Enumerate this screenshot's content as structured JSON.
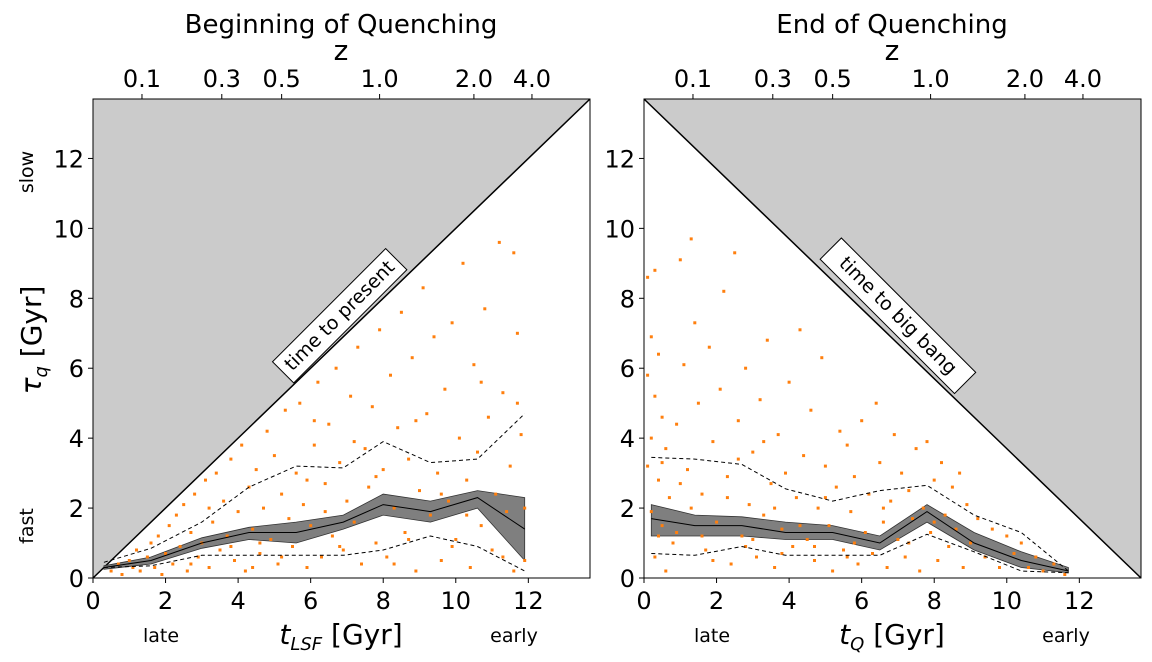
{
  "chart_data": [
    {
      "type": "scatter",
      "title": "Beginning of Quenching",
      "top_axis_label": "z",
      "top_ticks": [
        {
          "label": "0.1",
          "t": 1.35
        },
        {
          "label": "0.3",
          "t": 3.55
        },
        {
          "label": "0.5",
          "t": 5.2
        },
        {
          "label": "1.0",
          "t": 7.9
        },
        {
          "label": "2.0",
          "t": 10.5
        },
        {
          "label": "4.0",
          "t": 12.1
        }
      ],
      "xlabel_parts": [
        "t",
        "LSF",
        " [Gyr]"
      ],
      "ylabel_parts": [
        "τ",
        "q",
        " [Gyr]"
      ],
      "xticks": [
        0,
        2,
        4,
        6,
        8,
        10,
        12
      ],
      "yticks": [
        0,
        2,
        4,
        6,
        8,
        10,
        12
      ],
      "xlim": [
        0,
        13.7
      ],
      "ylim": [
        0,
        13.7
      ],
      "x_left_label": "late",
      "x_right_label": "early",
      "y_bottom_label": "fast",
      "y_top_label": "slow",
      "forbidden_region": "above_diagonal",
      "annotation": "time to present",
      "median": {
        "x": [
          0.3,
          1.6,
          3.0,
          4.3,
          5.6,
          6.9,
          8.0,
          9.3,
          10.6,
          11.9
        ],
        "y": [
          0.3,
          0.5,
          1.0,
          1.3,
          1.3,
          1.6,
          2.1,
          1.9,
          2.3,
          1.4
        ]
      },
      "band": {
        "x": [
          0.3,
          1.6,
          3.0,
          4.3,
          5.6,
          6.9,
          8.0,
          9.3,
          10.6,
          11.9
        ],
        "lo": [
          0.25,
          0.4,
          0.85,
          1.1,
          1.0,
          1.4,
          1.8,
          1.6,
          2.0,
          0.5
        ],
        "hi": [
          0.35,
          0.6,
          1.15,
          1.45,
          1.6,
          1.8,
          2.4,
          2.2,
          2.5,
          2.3
        ]
      },
      "upper_dashed": {
        "x": [
          0.3,
          1.6,
          3.0,
          4.3,
          5.6,
          6.9,
          8.0,
          9.3,
          10.6,
          11.9
        ],
        "y": [
          0.45,
          0.85,
          1.6,
          2.6,
          3.2,
          3.15,
          3.9,
          3.3,
          3.4,
          4.7
        ]
      },
      "lower_dashed": {
        "x": [
          0.3,
          1.6,
          3.0,
          4.3,
          5.6,
          6.9,
          8.0,
          9.3,
          10.6,
          11.9
        ],
        "y": [
          0.3,
          0.35,
          0.65,
          0.65,
          0.65,
          0.65,
          0.8,
          1.2,
          0.9,
          0.2
        ]
      },
      "points": [
        [
          0.5,
          0.2
        ],
        [
          0.7,
          0.4
        ],
        [
          0.8,
          0.1
        ],
        [
          1.0,
          0.5
        ],
        [
          1.1,
          0.3
        ],
        [
          1.2,
          0.8
        ],
        [
          1.3,
          0.2
        ],
        [
          1.5,
          0.6
        ],
        [
          1.6,
          1.0
        ],
        [
          1.7,
          0.3
        ],
        [
          1.8,
          1.2
        ],
        [
          1.9,
          0.1
        ],
        [
          2.0,
          0.7
        ],
        [
          2.1,
          1.5
        ],
        [
          2.2,
          0.4
        ],
        [
          2.3,
          1.8
        ],
        [
          2.4,
          0.9
        ],
        [
          2.5,
          2.1
        ],
        [
          2.6,
          0.2
        ],
        [
          2.7,
          1.3
        ],
        [
          2.8,
          2.4
        ],
        [
          2.9,
          0.6
        ],
        [
          3.0,
          1.0
        ],
        [
          3.1,
          2.8
        ],
        [
          3.2,
          0.3
        ],
        [
          3.3,
          1.6
        ],
        [
          3.4,
          3.0
        ],
        [
          3.5,
          0.8
        ],
        [
          3.6,
          2.2
        ],
        [
          3.7,
          1.2
        ],
        [
          3.8,
          3.4
        ],
        [
          3.9,
          0.5
        ],
        [
          4.0,
          1.9
        ],
        [
          4.1,
          3.8
        ],
        [
          4.2,
          0.2
        ],
        [
          4.3,
          2.6
        ],
        [
          4.4,
          1.4
        ],
        [
          4.5,
          3.1
        ],
        [
          4.6,
          0.7
        ],
        [
          4.7,
          2.0
        ],
        [
          4.8,
          4.2
        ],
        [
          4.9,
          1.1
        ],
        [
          5.0,
          3.5
        ],
        [
          5.1,
          0.4
        ],
        [
          5.2,
          2.4
        ],
        [
          5.3,
          4.8
        ],
        [
          5.4,
          1.7
        ],
        [
          5.5,
          0.9
        ],
        [
          5.6,
          3.0
        ],
        [
          5.7,
          5.0
        ],
        [
          5.8,
          2.1
        ],
        [
          5.9,
          0.3
        ],
        [
          6.0,
          1.5
        ],
        [
          6.1,
          3.8
        ],
        [
          6.2,
          5.6
        ],
        [
          6.3,
          0.6
        ],
        [
          6.4,
          2.7
        ],
        [
          6.5,
          4.4
        ],
        [
          6.6,
          1.2
        ],
        [
          6.7,
          6.0
        ],
        [
          6.8,
          3.3
        ],
        [
          6.9,
          0.8
        ],
        [
          7.0,
          2.2
        ],
        [
          7.1,
          5.2
        ],
        [
          7.2,
          1.6
        ],
        [
          7.3,
          6.6
        ],
        [
          7.4,
          0.4
        ],
        [
          7.5,
          3.7
        ],
        [
          7.6,
          2.6
        ],
        [
          7.7,
          4.9
        ],
        [
          7.8,
          1.0
        ],
        [
          7.9,
          7.1
        ],
        [
          8.0,
          3.1
        ],
        [
          8.1,
          0.6
        ],
        [
          8.2,
          5.8
        ],
        [
          8.3,
          2.0
        ],
        [
          8.4,
          4.3
        ],
        [
          8.5,
          7.6
        ],
        [
          8.6,
          1.3
        ],
        [
          8.7,
          3.4
        ],
        [
          8.8,
          6.3
        ],
        [
          8.9,
          0.2
        ],
        [
          9.0,
          2.5
        ],
        [
          9.1,
          8.3
        ],
        [
          9.2,
          4.7
        ],
        [
          9.3,
          1.8
        ],
        [
          9.4,
          6.9
        ],
        [
          9.5,
          3.0
        ],
        [
          9.6,
          0.5
        ],
        [
          9.7,
          5.4
        ],
        [
          9.8,
          2.2
        ],
        [
          9.9,
          7.3
        ],
        [
          10.0,
          1.1
        ],
        [
          10.1,
          4.0
        ],
        [
          10.2,
          9.0
        ],
        [
          10.3,
          2.8
        ],
        [
          10.4,
          0.3
        ],
        [
          10.5,
          6.1
        ],
        [
          10.6,
          3.6
        ],
        [
          10.7,
          1.5
        ],
        [
          10.8,
          7.7
        ],
        [
          10.9,
          4.6
        ],
        [
          11.0,
          0.8
        ],
        [
          11.1,
          2.4
        ],
        [
          11.2,
          9.6
        ],
        [
          11.3,
          5.3
        ],
        [
          11.4,
          1.9
        ],
        [
          11.5,
          3.2
        ],
        [
          11.6,
          0.2
        ],
        [
          11.7,
          7.0
        ],
        [
          11.8,
          4.1
        ],
        [
          11.9,
          2.0
        ],
        [
          11.6,
          9.3
        ],
        [
          11.7,
          5.0
        ],
        [
          11.9,
          0.5
        ],
        [
          3.2,
          2.0
        ],
        [
          4.6,
          1.0
        ],
        [
          5.9,
          2.8
        ],
        [
          6.4,
          1.9
        ],
        [
          7.8,
          2.9
        ],
        [
          8.7,
          1.1
        ],
        [
          9.6,
          2.4
        ],
        [
          10.3,
          1.8
        ],
        [
          11.3,
          0.6
        ],
        [
          5.2,
          0.6
        ],
        [
          6.8,
          0.9
        ],
        [
          8.3,
          0.4
        ],
        [
          9.9,
          0.9
        ],
        [
          4.4,
          0.3
        ],
        [
          3.8,
          0.9
        ],
        [
          2.7,
          0.4
        ],
        [
          7.2,
          3.9
        ],
        [
          6.1,
          4.5
        ],
        [
          8.9,
          4.5
        ],
        [
          10.7,
          5.6
        ]
      ]
    },
    {
      "type": "scatter",
      "title": "End of Quenching",
      "top_axis_label": "z",
      "top_ticks": [
        {
          "label": "0.1",
          "t": 1.35
        },
        {
          "label": "0.3",
          "t": 3.55
        },
        {
          "label": "0.5",
          "t": 5.2
        },
        {
          "label": "1.0",
          "t": 7.9
        },
        {
          "label": "2.0",
          "t": 10.5
        },
        {
          "label": "4.0",
          "t": 12.1
        }
      ],
      "xlabel_parts": [
        "t",
        "Q",
        " [Gyr]"
      ],
      "ylabel_parts": [
        "",
        "",
        ""
      ],
      "xticks": [
        0,
        2,
        4,
        6,
        8,
        10,
        12
      ],
      "yticks": [
        0,
        2,
        4,
        6,
        8,
        10,
        12
      ],
      "xlim": [
        0,
        13.7
      ],
      "ylim": [
        0,
        13.7
      ],
      "x_left_label": "late",
      "x_right_label": "early",
      "y_bottom_label": "",
      "y_top_label": "",
      "forbidden_region": "above_antidiagonal",
      "annotation": "time to big bang",
      "median": {
        "x": [
          0.2,
          1.4,
          2.7,
          3.9,
          5.2,
          6.5,
          7.8,
          9.1,
          10.4,
          11.7
        ],
        "y": [
          1.7,
          1.5,
          1.5,
          1.3,
          1.3,
          1.0,
          1.9,
          1.0,
          0.5,
          0.2
        ]
      },
      "band": {
        "x": [
          0.2,
          1.4,
          2.7,
          3.9,
          5.2,
          6.5,
          7.8,
          9.1,
          10.4,
          11.7
        ],
        "lo": [
          1.2,
          1.2,
          1.2,
          1.1,
          1.1,
          0.8,
          1.6,
          0.8,
          0.3,
          0.15
        ],
        "hi": [
          2.1,
          1.8,
          1.75,
          1.6,
          1.5,
          1.2,
          2.1,
          1.3,
          0.75,
          0.3
        ]
      },
      "upper_dashed": {
        "x": [
          0.2,
          1.4,
          2.7,
          3.9,
          5.2,
          6.5,
          7.8,
          9.1,
          10.4,
          11.7
        ],
        "y": [
          3.45,
          3.4,
          3.25,
          2.55,
          2.2,
          2.5,
          2.65,
          1.8,
          1.3,
          0.2
        ]
      },
      "lower_dashed": {
        "x": [
          0.2,
          1.4,
          2.7,
          3.9,
          5.2,
          6.5,
          7.8,
          9.1,
          10.4,
          11.7
        ],
        "y": [
          0.7,
          0.65,
          0.9,
          0.65,
          0.65,
          0.65,
          1.25,
          0.75,
          0.2,
          0.15
        ]
      },
      "points": [
        [
          0.1,
          8.6
        ],
        [
          0.3,
          8.8
        ],
        [
          0.2,
          6.9
        ],
        [
          0.4,
          6.4
        ],
        [
          0.1,
          5.8
        ],
        [
          0.3,
          5.2
        ],
        [
          0.5,
          4.6
        ],
        [
          0.2,
          4.0
        ],
        [
          0.6,
          3.7
        ],
        [
          0.1,
          3.2
        ],
        [
          0.4,
          2.8
        ],
        [
          0.7,
          2.3
        ],
        [
          0.2,
          1.9
        ],
        [
          0.5,
          1.5
        ],
        [
          0.8,
          1.0
        ],
        [
          0.3,
          0.6
        ],
        [
          0.6,
          0.2
        ],
        [
          0.9,
          4.4
        ],
        [
          1.0,
          9.1
        ],
        [
          1.1,
          6.1
        ],
        [
          1.2,
          3.1
        ],
        [
          1.3,
          9.7
        ],
        [
          1.4,
          7.3
        ],
        [
          1.5,
          5.0
        ],
        [
          1.6,
          2.4
        ],
        [
          1.7,
          0.8
        ],
        [
          1.8,
          6.6
        ],
        [
          1.9,
          3.9
        ],
        [
          2.0,
          1.6
        ],
        [
          2.1,
          5.4
        ],
        [
          2.2,
          8.2
        ],
        [
          2.3,
          2.9
        ],
        [
          2.4,
          0.4
        ],
        [
          2.5,
          9.3
        ],
        [
          2.6,
          4.5
        ],
        [
          2.7,
          1.2
        ],
        [
          2.8,
          6.0
        ],
        [
          2.9,
          2.1
        ],
        [
          3.0,
          3.6
        ],
        [
          3.1,
          0.6
        ],
        [
          3.2,
          5.1
        ],
        [
          3.3,
          1.8
        ],
        [
          3.4,
          6.8
        ],
        [
          3.5,
          2.7
        ],
        [
          3.6,
          0.3
        ],
        [
          3.7,
          4.1
        ],
        [
          3.8,
          1.4
        ],
        [
          3.9,
          3.0
        ],
        [
          4.0,
          5.6
        ],
        [
          4.1,
          0.9
        ],
        [
          4.2,
          2.3
        ],
        [
          4.3,
          7.1
        ],
        [
          4.4,
          3.5
        ],
        [
          4.5,
          1.1
        ],
        [
          4.6,
          4.8
        ],
        [
          4.7,
          0.5
        ],
        [
          4.8,
          2.0
        ],
        [
          4.9,
          6.3
        ],
        [
          5.0,
          3.2
        ],
        [
          5.1,
          1.5
        ],
        [
          5.2,
          0.2
        ],
        [
          5.3,
          2.6
        ],
        [
          5.4,
          4.2
        ],
        [
          5.5,
          0.8
        ],
        [
          5.6,
          3.8
        ],
        [
          5.7,
          1.9
        ],
        [
          5.8,
          2.9
        ],
        [
          5.9,
          0.4
        ],
        [
          6.0,
          4.5
        ],
        [
          6.1,
          1.3
        ],
        [
          6.2,
          2.4
        ],
        [
          6.3,
          0.7
        ],
        [
          6.4,
          5.0
        ],
        [
          6.5,
          3.3
        ],
        [
          6.6,
          1.6
        ],
        [
          6.7,
          0.3
        ],
        [
          6.8,
          2.2
        ],
        [
          6.9,
          4.1
        ],
        [
          7.0,
          1.1
        ],
        [
          7.1,
          3.0
        ],
        [
          7.2,
          0.6
        ],
        [
          7.3,
          2.5
        ],
        [
          7.4,
          1.7
        ],
        [
          7.5,
          3.7
        ],
        [
          7.6,
          0.2
        ],
        [
          7.7,
          2.0
        ],
        [
          7.8,
          3.9
        ],
        [
          7.9,
          1.3
        ],
        [
          8.0,
          2.8
        ],
        [
          8.1,
          0.5
        ],
        [
          8.2,
          3.3
        ],
        [
          8.3,
          1.8
        ],
        [
          8.4,
          0.9
        ],
        [
          8.5,
          2.6
        ],
        [
          8.6,
          1.4
        ],
        [
          8.7,
          3.0
        ],
        [
          8.8,
          0.3
        ],
        [
          8.9,
          2.1
        ],
        [
          9.0,
          1.0
        ],
        [
          9.2,
          1.7
        ],
        [
          9.4,
          0.6
        ],
        [
          9.6,
          1.4
        ],
        [
          9.8,
          0.3
        ],
        [
          10.0,
          1.2
        ],
        [
          10.2,
          0.7
        ],
        [
          10.4,
          1.0
        ],
        [
          10.6,
          0.3
        ],
        [
          10.8,
          0.6
        ],
        [
          11.0,
          0.2
        ],
        [
          11.3,
          0.4
        ],
        [
          11.6,
          0.1
        ],
        [
          0.5,
          3.3
        ],
        [
          1.0,
          2.7
        ],
        [
          1.6,
          1.2
        ],
        [
          2.3,
          2.3
        ],
        [
          3.0,
          1.1
        ],
        [
          3.6,
          2.0
        ],
        [
          4.3,
          1.5
        ],
        [
          5.0,
          2.3
        ],
        [
          5.8,
          1.0
        ],
        [
          6.6,
          2.0
        ],
        [
          7.3,
          1.0
        ],
        [
          8.0,
          1.6
        ],
        [
          0.9,
          1.3
        ],
        [
          1.9,
          0.5
        ],
        [
          2.8,
          0.9
        ],
        [
          3.8,
          0.7
        ],
        [
          4.7,
          0.9
        ],
        [
          5.6,
          0.6
        ],
        [
          0.4,
          1.2
        ],
        [
          1.3,
          2.0
        ],
        [
          2.6,
          3.4
        ],
        [
          3.3,
          3.9
        ]
      ]
    }
  ]
}
